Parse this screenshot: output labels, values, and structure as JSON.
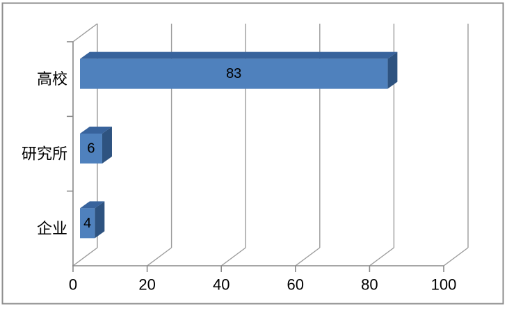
{
  "window": {
    "background": "#ffffff",
    "border_color": "#8c8c8c"
  },
  "chart_data": {
    "type": "bar",
    "orientation": "horizontal",
    "style": "3d",
    "title": "",
    "xlabel": "",
    "ylabel": "",
    "categories": [
      "高校",
      "研究所",
      "企业"
    ],
    "values": [
      83,
      6,
      4
    ],
    "data_labels": [
      "83",
      "6",
      "4"
    ],
    "x_ticks": [
      0,
      20,
      40,
      60,
      80,
      100
    ],
    "x_tick_labels": [
      "0",
      "20",
      "40",
      "60",
      "80",
      "100"
    ],
    "xlim": [
      0,
      100
    ],
    "grid": true,
    "legend": false,
    "colors": {
      "bar_front": "#4f81bd",
      "bar_top": "#38639c",
      "bar_side": "#2e5380",
      "gridline": "#9b9b9b",
      "axis": "#898989",
      "text": "#000000"
    }
  }
}
